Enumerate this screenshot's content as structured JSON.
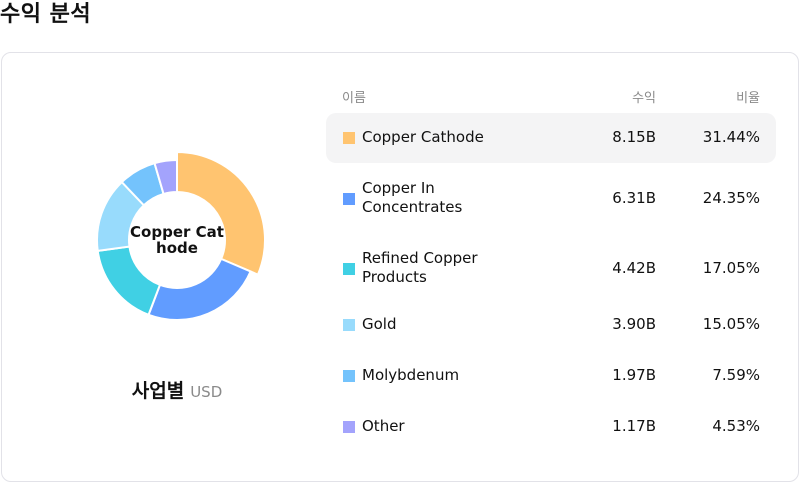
{
  "page": {
    "title": "수익 분석"
  },
  "chart": {
    "center_label": "Copper Cathode",
    "caption": "사업별",
    "unit": "USD",
    "active_index": 0
  },
  "table": {
    "headers": {
      "name": "이름",
      "revenue": "수익",
      "ratio": "비율"
    },
    "rows": [
      {
        "name": "Copper Cathode",
        "revenue": "8.15B",
        "ratio": "31.44%",
        "color": "#FFC470"
      },
      {
        "name": "Copper In Concentrates",
        "revenue": "6.31B",
        "ratio": "24.35%",
        "color": "#619CFF"
      },
      {
        "name": "Refined Copper Products",
        "revenue": "4.42B",
        "ratio": "17.05%",
        "color": "#40D0E4"
      },
      {
        "name": "Gold",
        "revenue": "3.90B",
        "ratio": "15.05%",
        "color": "#98DBFC"
      },
      {
        "name": "Molybdenum",
        "revenue": "1.97B",
        "ratio": "7.59%",
        "color": "#74C3FC"
      },
      {
        "name": "Other",
        "revenue": "1.17B",
        "ratio": "4.53%",
        "color": "#A3A3FC"
      }
    ]
  },
  "chart_data": {
    "type": "pie",
    "subtype": "donut",
    "title": "사업별",
    "unit": "USD",
    "center_label": "Copper Cathode",
    "categories": [
      "Copper Cathode",
      "Copper In Concentrates",
      "Refined Copper Products",
      "Gold",
      "Molybdenum",
      "Other"
    ],
    "values": [
      8.15,
      6.31,
      4.42,
      3.9,
      1.97,
      1.17
    ],
    "percentages": [
      31.44,
      24.35,
      17.05,
      15.05,
      7.59,
      4.53
    ],
    "value_unit": "B USD",
    "colors": [
      "#FFC470",
      "#619CFF",
      "#40D0E4",
      "#98DBFC",
      "#74C3FC",
      "#A3A3FC"
    ],
    "highlighted": "Copper Cathode",
    "legend_position": "right (table)"
  }
}
